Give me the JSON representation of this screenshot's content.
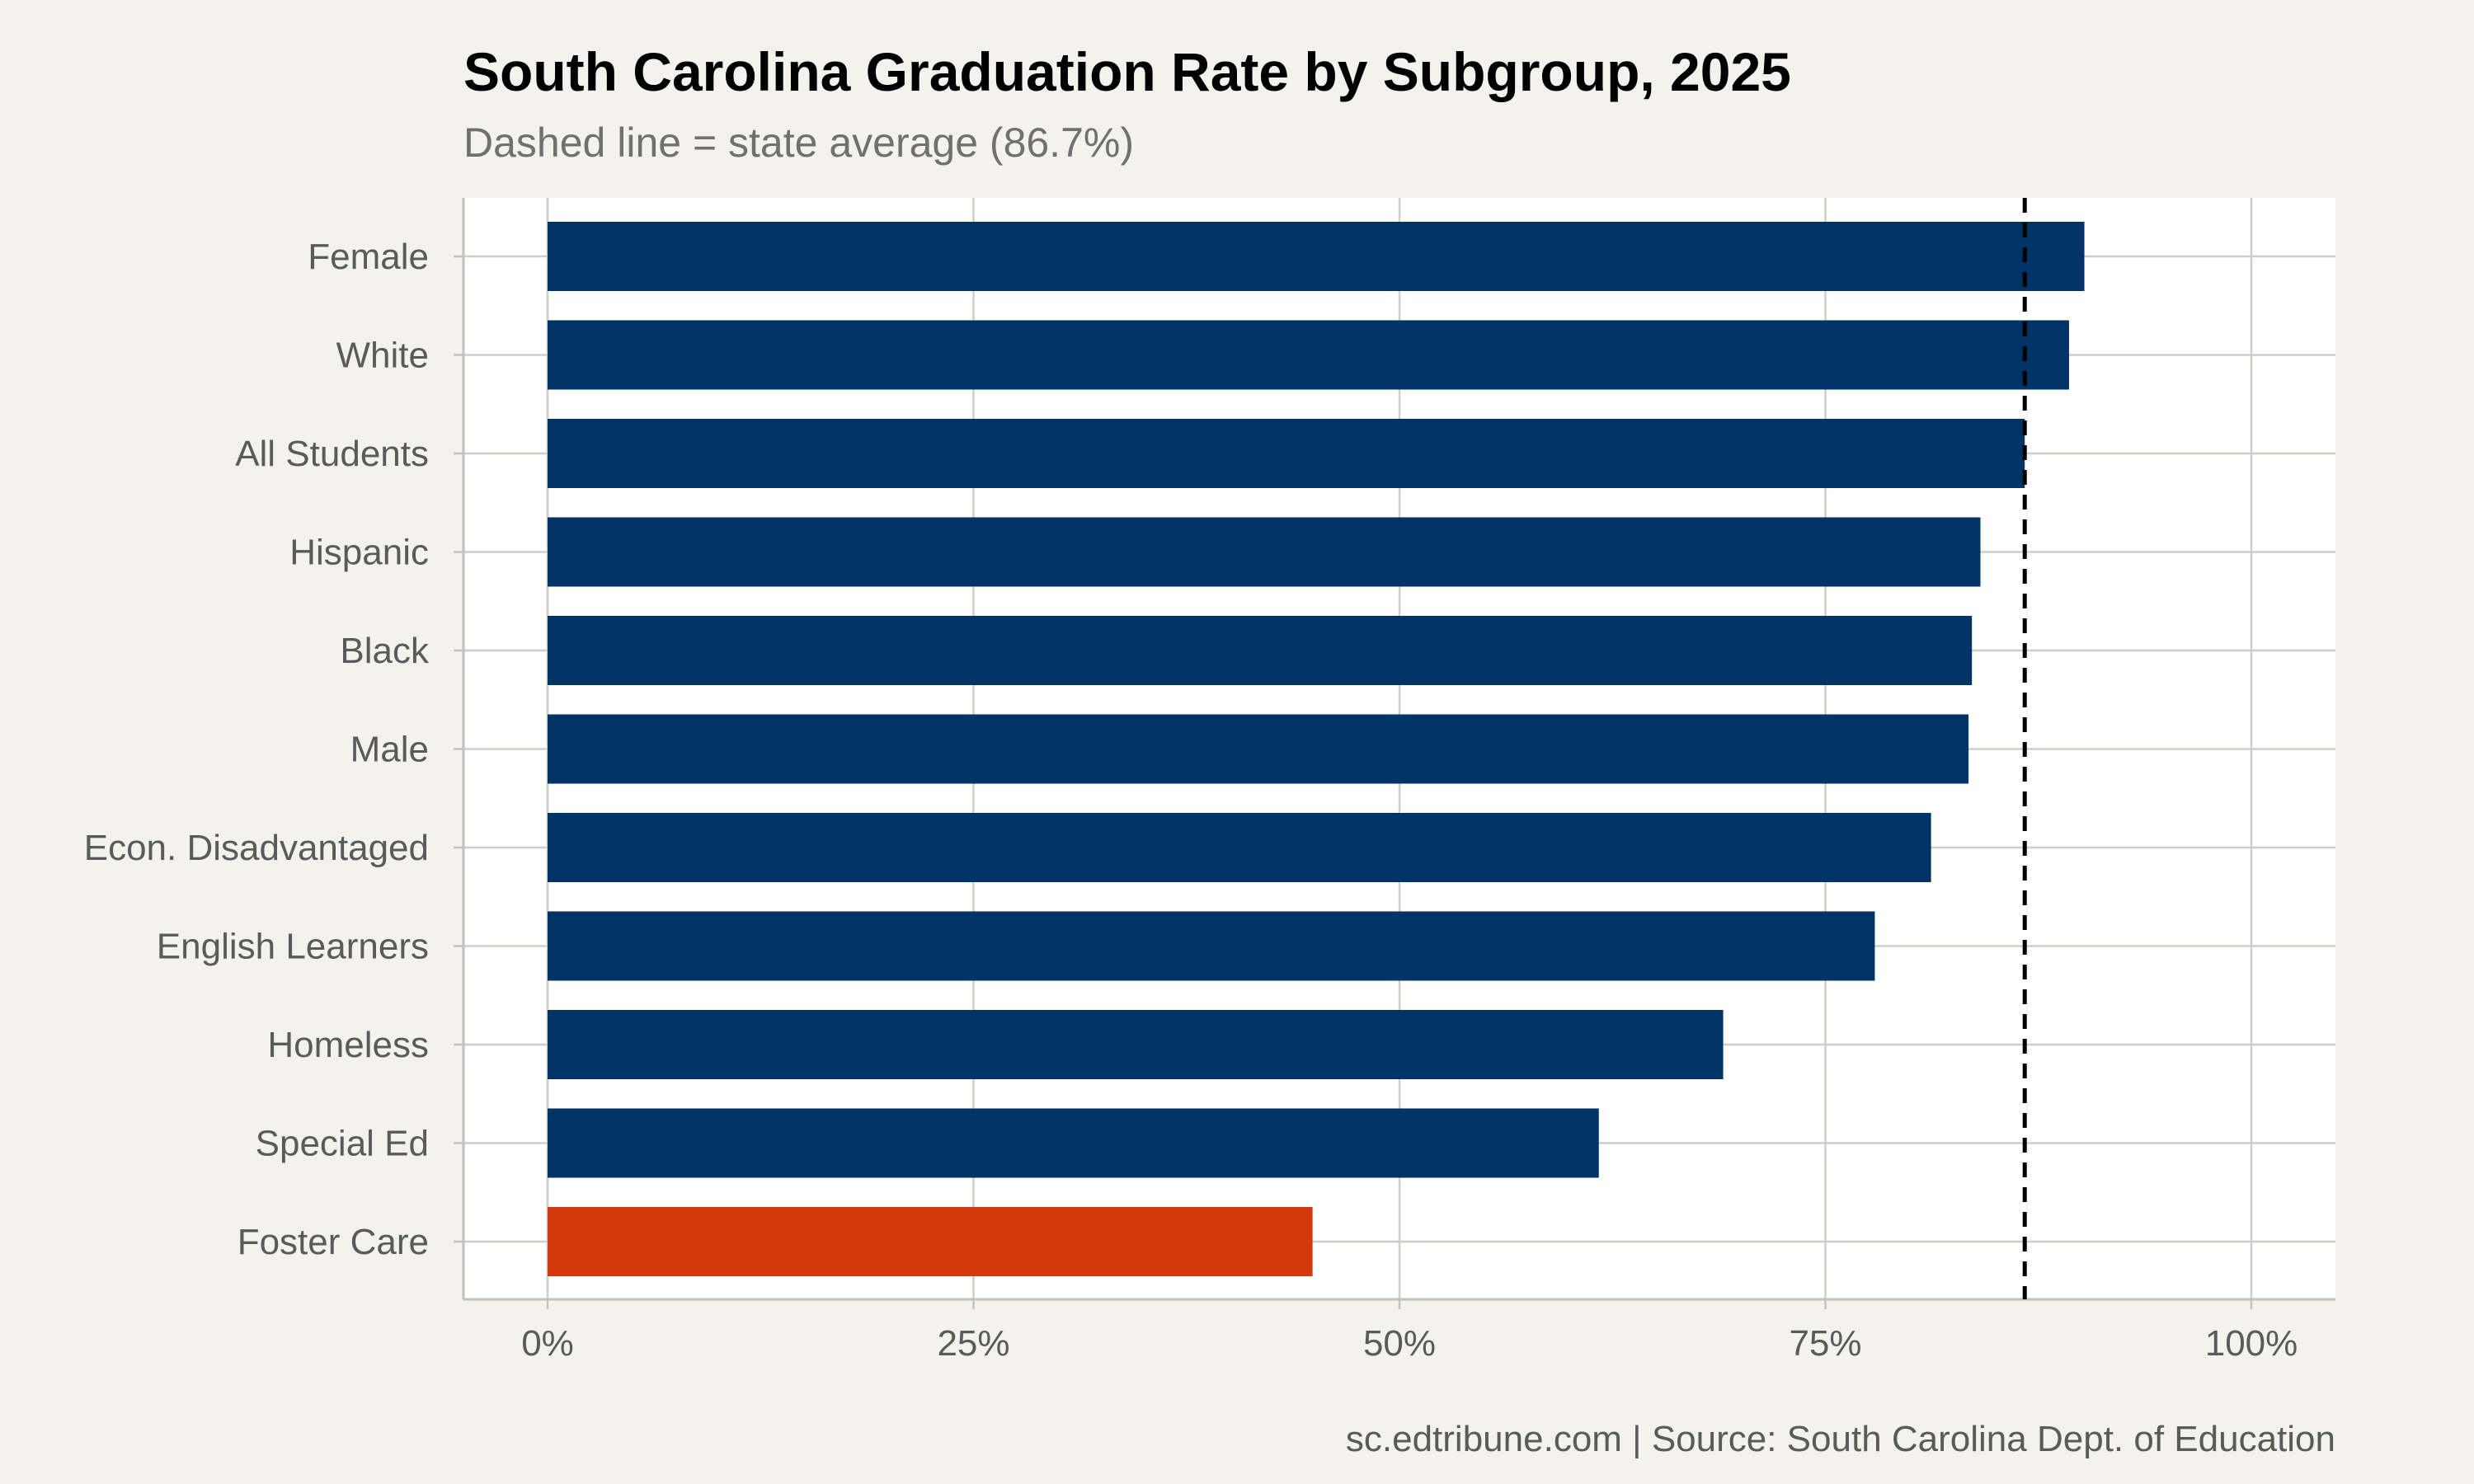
{
  "chart_data": {
    "type": "bar",
    "orientation": "horizontal",
    "title": "South Carolina Graduation Rate by Subgroup, 2025",
    "subtitle": "Dashed line = state average (86.7%)",
    "caption": "sc.edtribune.com | Source: South Carolina Dept. of Education",
    "categories": [
      "Female",
      "White",
      "All Students",
      "Hispanic",
      "Black",
      "Male",
      "Econ. Disadvantaged",
      "English Learners",
      "Homeless",
      "Special Ed",
      "Foster Care"
    ],
    "values": [
      90.2,
      89.3,
      86.7,
      84.1,
      83.6,
      83.4,
      81.2,
      77.9,
      69.0,
      61.7,
      44.9
    ],
    "reference_line": {
      "value": 86.7,
      "style": "dashed",
      "color": "#000000"
    },
    "x_ticks": [
      0,
      25,
      50,
      75,
      100
    ],
    "x_tick_labels": [
      "0%",
      "25%",
      "50%",
      "75%",
      "100%"
    ],
    "xlim": [
      0,
      100
    ],
    "grid": true,
    "legend": "none",
    "colors": {
      "default_bar": "#003366",
      "highlight_bar": "#d4380d",
      "background": "#f4f2ed",
      "panel": "#ffffff",
      "grid": "#d0cdc6"
    },
    "highlight_categories": [
      "Foster Care"
    ]
  }
}
